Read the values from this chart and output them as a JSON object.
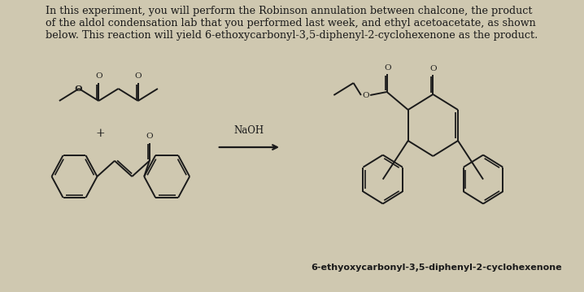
{
  "background_color": "#cfc8b0",
  "text_color": "#1a1a1a",
  "title_text": "In this experiment, you will perform the Robinson annulation between chalcone, the product\nof the aldol condensation lab that you performed last week, and ethyl acetoacetate, as shown\nbelow. This reaction will yield 6-ethoxycarbonyl-3,5-diphenyl-2-cyclohexenone as the product.",
  "reagent_label": "NaOH",
  "product_label": "6-ethyoxycarbonyl-3,5-diphenyl-2-cyclohexenone",
  "font_size_body": 9.2,
  "font_size_label": 8.0,
  "font_size_reagent": 8.5,
  "font_size_O": 7.0,
  "line_color": "#1a1a1a",
  "line_width": 1.4
}
